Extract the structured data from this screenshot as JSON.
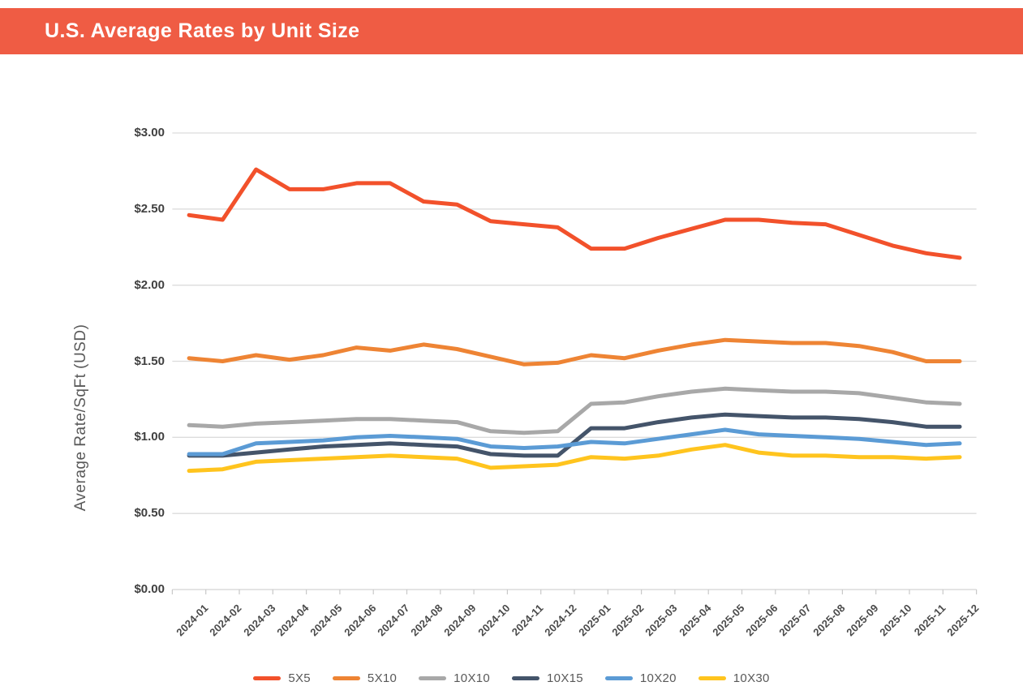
{
  "header": {
    "title": "U.S. Average Rates by Unit Size",
    "background_color": "#EF5C44",
    "text_color": "#FFFFFF"
  },
  "chart_data": {
    "type": "line",
    "title": "U.S. Average Rates by Unit Size",
    "xlabel": "",
    "ylabel": "Average Rate/SqFt (USD)",
    "ylim": [
      0,
      3
    ],
    "ytick_step": 0.5,
    "ytick_labels": [
      "$0.00",
      "$0.50",
      "$1.00",
      "$1.50",
      "$2.00",
      "$2.50",
      "$3.00"
    ],
    "grid": true,
    "legend_position": "bottom",
    "gridline_color": "#DCDCDC",
    "axis_line_color": "#D3D3D3",
    "categories": [
      "2024-01",
      "2024-02",
      "2024-03",
      "2024-04",
      "2024-05",
      "2024-06",
      "2024-07",
      "2024-08",
      "2024-09",
      "2024-10",
      "2024-11",
      "2024-12",
      "2025-01",
      "2025-02",
      "2025-03",
      "2025-04",
      "2025-05",
      "2025-06",
      "2025-07",
      "2025-08",
      "2025-09",
      "2025-10",
      "2025-11",
      "2025-12"
    ],
    "series": [
      {
        "name": "5X5",
        "color": "#F2512B",
        "values": [
          2.46,
          2.43,
          2.76,
          2.63,
          2.63,
          2.67,
          2.67,
          2.55,
          2.53,
          2.42,
          2.4,
          2.38,
          2.24,
          2.24,
          2.31,
          2.37,
          2.43,
          2.43,
          2.41,
          2.4,
          2.33,
          2.26,
          2.21,
          2.18
        ]
      },
      {
        "name": "5X10",
        "color": "#EE8434",
        "values": [
          1.52,
          1.5,
          1.54,
          1.51,
          1.54,
          1.59,
          1.57,
          1.61,
          1.58,
          1.53,
          1.48,
          1.49,
          1.54,
          1.52,
          1.57,
          1.61,
          1.64,
          1.63,
          1.62,
          1.62,
          1.6,
          1.56,
          1.5,
          1.5
        ]
      },
      {
        "name": "10X10",
        "color": "#A8A8A8",
        "values": [
          1.08,
          1.07,
          1.09,
          1.1,
          1.11,
          1.12,
          1.12,
          1.11,
          1.1,
          1.04,
          1.03,
          1.04,
          1.22,
          1.23,
          1.27,
          1.3,
          1.32,
          1.31,
          1.3,
          1.3,
          1.29,
          1.26,
          1.23,
          1.22
        ]
      },
      {
        "name": "10X15",
        "color": "#44546A",
        "values": [
          0.88,
          0.88,
          0.9,
          0.92,
          0.94,
          0.95,
          0.96,
          0.95,
          0.94,
          0.89,
          0.88,
          0.88,
          1.06,
          1.06,
          1.1,
          1.13,
          1.15,
          1.14,
          1.13,
          1.13,
          1.12,
          1.1,
          1.07,
          1.07
        ]
      },
      {
        "name": "10X20",
        "color": "#5B9BD5",
        "values": [
          0.89,
          0.89,
          0.96,
          0.97,
          0.98,
          1.0,
          1.01,
          1.0,
          0.99,
          0.94,
          0.93,
          0.94,
          0.97,
          0.96,
          0.99,
          1.02,
          1.05,
          1.02,
          1.01,
          1.0,
          0.99,
          0.97,
          0.95,
          0.96
        ]
      },
      {
        "name": "10X30",
        "color": "#FFC41E",
        "values": [
          0.78,
          0.79,
          0.84,
          0.85,
          0.86,
          0.87,
          0.88,
          0.87,
          0.86,
          0.8,
          0.81,
          0.82,
          0.87,
          0.86,
          0.88,
          0.92,
          0.95,
          0.9,
          0.88,
          0.88,
          0.87,
          0.87,
          0.86,
          0.87
        ]
      }
    ]
  }
}
